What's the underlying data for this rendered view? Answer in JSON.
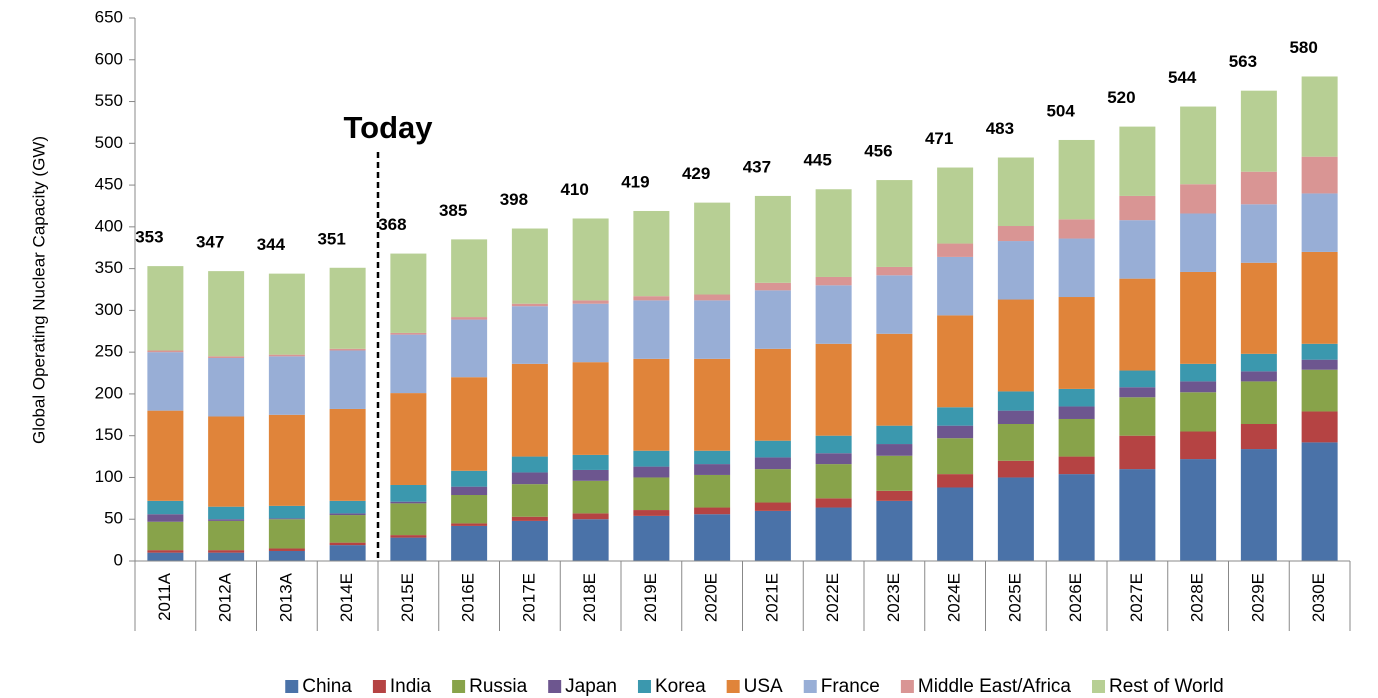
{
  "chart_data": {
    "type": "stacked_bar",
    "ylabel": "Global Operating Nuclear Capacity (GW)",
    "annotation": "Today",
    "categories": [
      "2011A",
      "2012A",
      "2013A",
      "2014E",
      "2015E",
      "2016E",
      "2017E",
      "2018E",
      "2019E",
      "2020E",
      "2021E",
      "2022E",
      "2023E",
      "2024E",
      "2025E",
      "2026E",
      "2027E",
      "2028E",
      "2029E",
      "2030E"
    ],
    "ylim": [
      0,
      650
    ],
    "yticks": [
      0,
      50,
      100,
      150,
      200,
      250,
      300,
      350,
      400,
      450,
      500,
      550,
      600,
      650
    ],
    "totals": [
      353,
      347,
      344,
      351,
      368,
      385,
      398,
      410,
      419,
      429,
      437,
      445,
      456,
      471,
      483,
      504,
      520,
      544,
      563,
      580
    ],
    "series": [
      {
        "name": "China",
        "color": "#4a72a8",
        "values": [
          10,
          10,
          12,
          19,
          28,
          42,
          48,
          50,
          54,
          56,
          60,
          64,
          72,
          88,
          100,
          104,
          110,
          122,
          134,
          142
        ]
      },
      {
        "name": "India",
        "color": "#b54343",
        "values": [
          3,
          3,
          3,
          3,
          3,
          3,
          5,
          7,
          7,
          8,
          10,
          11,
          12,
          16,
          20,
          21,
          40,
          33,
          30,
          37
        ]
      },
      {
        "name": "Russia",
        "color": "#88a34a",
        "values": [
          34,
          35,
          35,
          33,
          38,
          34,
          39,
          39,
          39,
          39,
          40,
          41,
          42,
          43,
          44,
          45,
          46,
          47,
          51,
          50
        ]
      },
      {
        "name": "Japan",
        "color": "#6d568f",
        "values": [
          9,
          2,
          1,
          2,
          2,
          10,
          14,
          13,
          13,
          13,
          14,
          13,
          14,
          15,
          16,
          15,
          12,
          13,
          12,
          12
        ]
      },
      {
        "name": "Korea",
        "color": "#3b98ae",
        "values": [
          16,
          15,
          15,
          15,
          20,
          19,
          19,
          18,
          19,
          16,
          20,
          21,
          22,
          22,
          23,
          21,
          20,
          21,
          21,
          19
        ]
      },
      {
        "name": "USA",
        "color": "#e0843a",
        "values": [
          108,
          108,
          109,
          110,
          110,
          112,
          111,
          111,
          110,
          110,
          110,
          110,
          110,
          110,
          110,
          110,
          110,
          110,
          109,
          110
        ]
      },
      {
        "name": "France",
        "color": "#98aed6",
        "values": [
          70,
          70,
          70,
          70,
          70,
          69,
          69,
          70,
          70,
          70,
          70,
          70,
          70,
          70,
          70,
          70,
          70,
          70,
          70,
          70
        ]
      },
      {
        "name": "Middle East/Africa",
        "color": "#d99594",
        "values": [
          2,
          2,
          2,
          2,
          2,
          3,
          3,
          4,
          5,
          7,
          9,
          10,
          10,
          16,
          18,
          23,
          29,
          35,
          39,
          44
        ]
      },
      {
        "name": "Rest of World",
        "color": "#b7cf94",
        "values": [
          101,
          102,
          97,
          97,
          95,
          93,
          90,
          98,
          102,
          110,
          104,
          105,
          104,
          91,
          82,
          95,
          83,
          93,
          97,
          96
        ]
      }
    ]
  }
}
